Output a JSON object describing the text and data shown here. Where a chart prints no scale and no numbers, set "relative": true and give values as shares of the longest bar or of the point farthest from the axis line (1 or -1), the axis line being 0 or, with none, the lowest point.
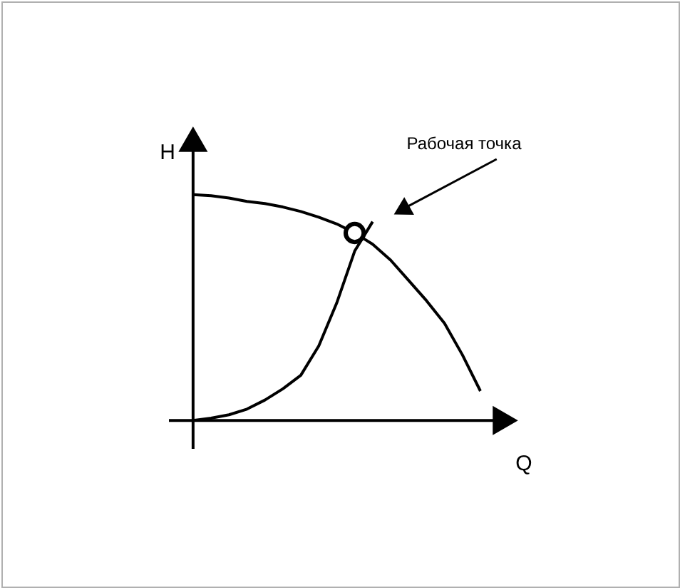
{
  "chart_data": {
    "type": "line",
    "relative": true,
    "xlabel": "Q",
    "ylabel": "H",
    "categories": [
      null,
      null,
      null,
      null,
      null,
      null,
      null,
      null,
      null,
      null,
      null,
      null,
      null,
      null,
      null,
      null,
      null
    ],
    "series": [
      {
        "color": "#000000",
        "values": [
          1.0,
          0.995,
          0.985,
          0.97,
          0.96,
          0.945,
          0.925,
          0.9,
          0.87,
          0.83,
          0.78,
          0.71,
          0.62,
          0.53,
          0.43,
          0.29,
          0.13
        ]
      },
      {
        "color": "#000000",
        "values": [
          0,
          0.01,
          0.025,
          0.05,
          0.09,
          0.14,
          0.2,
          0.33,
          0.52,
          0.75,
          0.88,
          null,
          null,
          null,
          null,
          null,
          null
        ]
      }
    ],
    "annotations": [
      "Рабочая точка"
    ]
  }
}
